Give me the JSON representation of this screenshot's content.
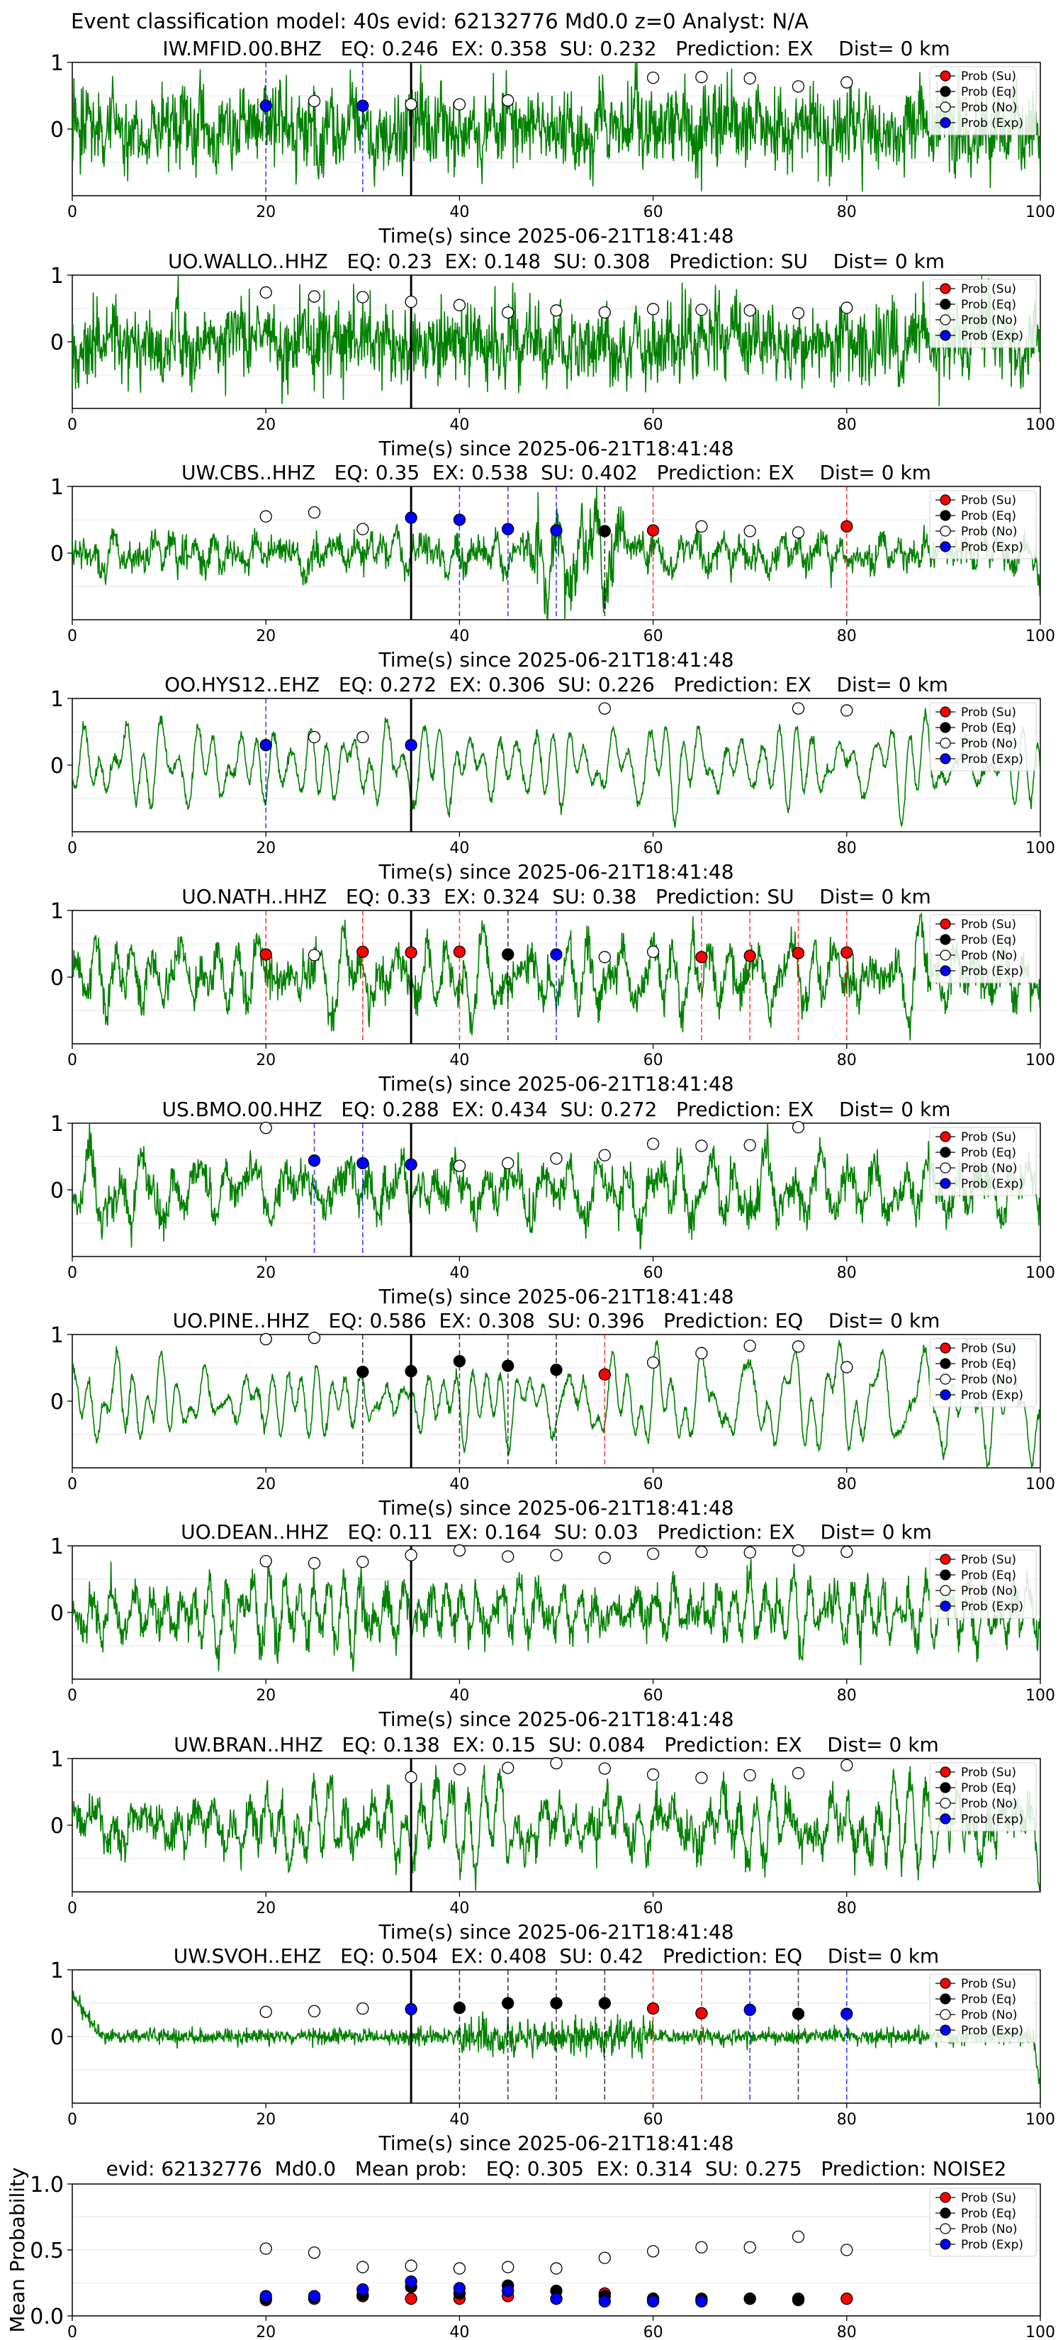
{
  "suptitle": "Event classification model: 40s evid: 62132776 Md0.0 z=0 Analyst: N/A",
  "colors": {
    "trace": "#008000",
    "su": "#ff0000",
    "eq": "#000000",
    "no": "#ffffff",
    "exp": "#0000ff",
    "origin_line": "#000000"
  },
  "legend": [
    "Prob (Su)",
    "Prob (Eq)",
    "Prob (No)",
    "Prob (Exp)"
  ],
  "chart_data": [
    {
      "type": "line",
      "panel_type": "waveform",
      "title": "IW.MFID.00.BHZ   EQ: 0.246  EX: 0.358  SU: 0.232   Prediction: EX    Dist= 0 km",
      "xlabel": "Time(s) since 2025-06-21T18:41:48",
      "xlim": [
        0,
        100
      ],
      "ylim": [
        -1,
        1
      ],
      "xticks": [
        0,
        20,
        40,
        60,
        80,
        100
      ],
      "yticks": [
        1,
        0
      ],
      "origin_time": 35,
      "trace_style": "noisy",
      "points": [
        {
          "t": 20,
          "p": 0.35,
          "c": "exp",
          "vline": true
        },
        {
          "t": 25,
          "p": 0.42,
          "c": "no"
        },
        {
          "t": 30,
          "p": 0.35,
          "c": "exp",
          "vline": true
        },
        {
          "t": 35,
          "p": 0.37,
          "c": "no"
        },
        {
          "t": 40,
          "p": 0.37,
          "c": "no"
        },
        {
          "t": 45,
          "p": 0.43,
          "c": "no"
        },
        {
          "t": 60,
          "p": 0.77,
          "c": "no"
        },
        {
          "t": 65,
          "p": 0.78,
          "c": "no"
        },
        {
          "t": 70,
          "p": 0.76,
          "c": "no"
        },
        {
          "t": 75,
          "p": 0.64,
          "c": "no"
        },
        {
          "t": 80,
          "p": 0.7,
          "c": "no"
        }
      ]
    },
    {
      "type": "line",
      "panel_type": "waveform",
      "title": "UO.WALLO..HHZ   EQ: 0.23  EX: 0.148  SU: 0.308   Prediction: SU    Dist= 0 km",
      "xlabel": "Time(s) since 2025-06-21T18:41:48",
      "xlim": [
        0,
        100
      ],
      "ylim": [
        -1,
        1
      ],
      "xticks": [
        0,
        20,
        40,
        60,
        80,
        100
      ],
      "yticks": [
        1,
        0
      ],
      "origin_time": 35,
      "trace_style": "noisy",
      "points": [
        {
          "t": 20,
          "p": 0.74,
          "c": "no"
        },
        {
          "t": 25,
          "p": 0.68,
          "c": "no"
        },
        {
          "t": 30,
          "p": 0.67,
          "c": "no"
        },
        {
          "t": 35,
          "p": 0.6,
          "c": "no"
        },
        {
          "t": 40,
          "p": 0.55,
          "c": "no"
        },
        {
          "t": 45,
          "p": 0.44,
          "c": "no"
        },
        {
          "t": 50,
          "p": 0.47,
          "c": "no"
        },
        {
          "t": 55,
          "p": 0.44,
          "c": "no"
        },
        {
          "t": 60,
          "p": 0.49,
          "c": "no"
        },
        {
          "t": 65,
          "p": 0.48,
          "c": "no"
        },
        {
          "t": 70,
          "p": 0.47,
          "c": "no"
        },
        {
          "t": 75,
          "p": 0.43,
          "c": "no"
        },
        {
          "t": 80,
          "p": 0.51,
          "c": "no"
        }
      ]
    },
    {
      "type": "line",
      "panel_type": "waveform",
      "title": "UW.CBS..HHZ   EQ: 0.35  EX: 0.538  SU: 0.402   Prediction: EX    Dist= 0 km",
      "xlabel": "Time(s) since 2025-06-21T18:41:48",
      "xlim": [
        0,
        100
      ],
      "ylim": [
        -1,
        1
      ],
      "xticks": [
        0,
        20,
        40,
        60,
        80,
        100
      ],
      "yticks": [
        1,
        0
      ],
      "origin_time": 35,
      "trace_style": "burst",
      "points": [
        {
          "t": 20,
          "p": 0.55,
          "c": "no"
        },
        {
          "t": 25,
          "p": 0.61,
          "c": "no"
        },
        {
          "t": 30,
          "p": 0.36,
          "c": "no"
        },
        {
          "t": 35,
          "p": 0.53,
          "c": "exp"
        },
        {
          "t": 40,
          "p": 0.5,
          "c": "exp",
          "vline": true
        },
        {
          "t": 45,
          "p": 0.36,
          "c": "exp",
          "vline": true
        },
        {
          "t": 50,
          "p": 0.34,
          "c": "exp",
          "vline": true
        },
        {
          "t": 55,
          "p": 0.33,
          "c": "eq",
          "vline": true
        },
        {
          "t": 60,
          "p": 0.34,
          "c": "su",
          "vline": true
        },
        {
          "t": 65,
          "p": 0.4,
          "c": "no"
        },
        {
          "t": 70,
          "p": 0.33,
          "c": "no"
        },
        {
          "t": 75,
          "p": 0.31,
          "c": "no"
        },
        {
          "t": 80,
          "p": 0.4,
          "c": "su",
          "vline": true
        }
      ]
    },
    {
      "type": "line",
      "panel_type": "waveform",
      "title": "OO.HYS12..EHZ   EQ: 0.272  EX: 0.306  SU: 0.226   Prediction: EX    Dist= 0 km",
      "xlabel": "Time(s) since 2025-06-21T18:41:48",
      "xlim": [
        0,
        100
      ],
      "ylim": [
        -1,
        1
      ],
      "xticks": [
        0,
        20,
        40,
        60,
        80,
        100
      ],
      "yticks": [
        1,
        0
      ],
      "origin_time": 35,
      "trace_style": "smooth",
      "points": [
        {
          "t": 20,
          "p": 0.3,
          "c": "exp",
          "vline": true
        },
        {
          "t": 25,
          "p": 0.42,
          "c": "no"
        },
        {
          "t": 30,
          "p": 0.42,
          "c": "no"
        },
        {
          "t": 35,
          "p": 0.3,
          "c": "exp"
        },
        {
          "t": 55,
          "p": 0.85,
          "c": "no"
        },
        {
          "t": 75,
          "p": 0.85,
          "c": "no"
        },
        {
          "t": 80,
          "p": 0.82,
          "c": "no"
        }
      ]
    },
    {
      "type": "line",
      "panel_type": "waveform",
      "title": "UO.NATH..HHZ   EQ: 0.33  EX: 0.324  SU: 0.38   Prediction: SU    Dist= 0 km",
      "xlabel": "Time(s) since 2025-06-21T18:41:48",
      "xlim": [
        0,
        100
      ],
      "ylim": [
        -1,
        1
      ],
      "xticks": [
        0,
        20,
        40,
        60,
        80,
        100
      ],
      "yticks": [
        1,
        0
      ],
      "origin_time": 35,
      "trace_style": "smooth-noisy",
      "points": [
        {
          "t": 20,
          "p": 0.34,
          "c": "su",
          "vline": true
        },
        {
          "t": 25,
          "p": 0.33,
          "c": "no"
        },
        {
          "t": 30,
          "p": 0.38,
          "c": "su",
          "vline": true
        },
        {
          "t": 35,
          "p": 0.37,
          "c": "su"
        },
        {
          "t": 40,
          "p": 0.38,
          "c": "su",
          "vline": true
        },
        {
          "t": 45,
          "p": 0.34,
          "c": "eq",
          "vline": true
        },
        {
          "t": 50,
          "p": 0.34,
          "c": "exp",
          "vline": true
        },
        {
          "t": 55,
          "p": 0.3,
          "c": "no"
        },
        {
          "t": 60,
          "p": 0.38,
          "c": "no"
        },
        {
          "t": 65,
          "p": 0.3,
          "c": "su",
          "vline": true
        },
        {
          "t": 70,
          "p": 0.32,
          "c": "su",
          "vline": true
        },
        {
          "t": 75,
          "p": 0.36,
          "c": "su",
          "vline": true
        },
        {
          "t": 80,
          "p": 0.37,
          "c": "su",
          "vline": true
        }
      ]
    },
    {
      "type": "line",
      "panel_type": "waveform",
      "title": "US.BMO.00.HHZ   EQ: 0.288  EX: 0.434  SU: 0.272   Prediction: EX    Dist= 0 km",
      "xlabel": "Time(s) since 2025-06-21T18:41:48",
      "xlim": [
        0,
        100
      ],
      "ylim": [
        -1,
        1
      ],
      "xticks": [
        0,
        20,
        40,
        60,
        80,
        100
      ],
      "yticks": [
        1,
        0
      ],
      "origin_time": 35,
      "trace_style": "smooth-noisy",
      "points": [
        {
          "t": 20,
          "p": 0.93,
          "c": "no"
        },
        {
          "t": 25,
          "p": 0.44,
          "c": "exp",
          "vline": true
        },
        {
          "t": 30,
          "p": 0.4,
          "c": "exp",
          "vline": true
        },
        {
          "t": 35,
          "p": 0.38,
          "c": "exp"
        },
        {
          "t": 40,
          "p": 0.36,
          "c": "no"
        },
        {
          "t": 45,
          "p": 0.4,
          "c": "no"
        },
        {
          "t": 50,
          "p": 0.47,
          "c": "no"
        },
        {
          "t": 55,
          "p": 0.52,
          "c": "no"
        },
        {
          "t": 60,
          "p": 0.69,
          "c": "no"
        },
        {
          "t": 65,
          "p": 0.66,
          "c": "no"
        },
        {
          "t": 70,
          "p": 0.67,
          "c": "no"
        },
        {
          "t": 75,
          "p": 0.94,
          "c": "no"
        }
      ]
    },
    {
      "type": "line",
      "panel_type": "waveform",
      "title": "UO.PINE..HHZ   EQ: 0.586  EX: 0.308  SU: 0.396   Prediction: EQ    Dist= 0 km",
      "xlabel": "Time(s) since 2025-06-21T18:41:48",
      "xlim": [
        0,
        100
      ],
      "ylim": [
        -1,
        1
      ],
      "xticks": [
        0,
        20,
        40,
        60,
        80,
        100
      ],
      "yticks": [
        1,
        0
      ],
      "origin_time": 35,
      "trace_style": "smooth",
      "points": [
        {
          "t": 20,
          "p": 0.93,
          "c": "no"
        },
        {
          "t": 25,
          "p": 0.95,
          "c": "no"
        },
        {
          "t": 30,
          "p": 0.44,
          "c": "eq",
          "vline": true
        },
        {
          "t": 35,
          "p": 0.45,
          "c": "eq"
        },
        {
          "t": 40,
          "p": 0.6,
          "c": "eq",
          "vline": true
        },
        {
          "t": 45,
          "p": 0.53,
          "c": "eq",
          "vline": true
        },
        {
          "t": 50,
          "p": 0.47,
          "c": "eq",
          "vline": true
        },
        {
          "t": 55,
          "p": 0.4,
          "c": "su",
          "vline": true
        },
        {
          "t": 60,
          "p": 0.58,
          "c": "no"
        },
        {
          "t": 65,
          "p": 0.72,
          "c": "no"
        },
        {
          "t": 70,
          "p": 0.83,
          "c": "no"
        },
        {
          "t": 75,
          "p": 0.82,
          "c": "no"
        },
        {
          "t": 80,
          "p": 0.51,
          "c": "no"
        }
      ]
    },
    {
      "type": "line",
      "panel_type": "waveform",
      "title": "UO.DEAN..HHZ   EQ: 0.11  EX: 0.164  SU: 0.03   Prediction: EX    Dist= 0 km",
      "xlabel": "Time(s) since 2025-06-21T18:41:48",
      "xlim": [
        0,
        100
      ],
      "ylim": [
        -1,
        1
      ],
      "xticks": [
        0,
        20,
        40,
        60,
        80,
        100
      ],
      "yticks": [
        1,
        0
      ],
      "origin_time": 35,
      "trace_style": "smooth-noisy",
      "points": [
        {
          "t": 20,
          "p": 0.77,
          "c": "no"
        },
        {
          "t": 25,
          "p": 0.74,
          "c": "no"
        },
        {
          "t": 30,
          "p": 0.76,
          "c": "no"
        },
        {
          "t": 35,
          "p": 0.86,
          "c": "no"
        },
        {
          "t": 40,
          "p": 0.93,
          "c": "no"
        },
        {
          "t": 45,
          "p": 0.84,
          "c": "no"
        },
        {
          "t": 50,
          "p": 0.86,
          "c": "no"
        },
        {
          "t": 55,
          "p": 0.82,
          "c": "no"
        },
        {
          "t": 60,
          "p": 0.88,
          "c": "no"
        },
        {
          "t": 65,
          "p": 0.91,
          "c": "no"
        },
        {
          "t": 70,
          "p": 0.9,
          "c": "no"
        },
        {
          "t": 75,
          "p": 0.93,
          "c": "no"
        },
        {
          "t": 80,
          "p": 0.91,
          "c": "no"
        }
      ]
    },
    {
      "type": "line",
      "panel_type": "waveform",
      "title": "UW.BRAN..HHZ   EQ: 0.138  EX: 0.15  SU: 0.084   Prediction: EX    Dist= 0 km",
      "xlabel": "Time(s) since 2025-06-21T18:41:48",
      "xlim": [
        0,
        100
      ],
      "ylim": [
        -1,
        1
      ],
      "xticks": [
        0,
        20,
        40,
        60,
        80
      ],
      "yticks": [
        1,
        0
      ],
      "origin_time": 35,
      "trace_style": "smooth-noisy",
      "points": [
        {
          "t": 35,
          "p": 0.72,
          "c": "no"
        },
        {
          "t": 40,
          "p": 0.84,
          "c": "no"
        },
        {
          "t": 45,
          "p": 0.86,
          "c": "no"
        },
        {
          "t": 50,
          "p": 0.93,
          "c": "no"
        },
        {
          "t": 55,
          "p": 0.85,
          "c": "no"
        },
        {
          "t": 60,
          "p": 0.76,
          "c": "no"
        },
        {
          "t": 65,
          "p": 0.71,
          "c": "no"
        },
        {
          "t": 70,
          "p": 0.75,
          "c": "no"
        },
        {
          "t": 75,
          "p": 0.78,
          "c": "no"
        },
        {
          "t": 80,
          "p": 0.9,
          "c": "no"
        }
      ]
    },
    {
      "type": "line",
      "panel_type": "waveform",
      "title": "UW.SVOH..EHZ   EQ: 0.504  EX: 0.408  SU: 0.42   Prediction: EQ    Dist= 0 km",
      "xlabel": "Time(s) since 2025-06-21T18:41:48",
      "xlim": [
        0,
        100
      ],
      "ylim": [
        -1,
        1
      ],
      "xticks": [
        0,
        20,
        40,
        60,
        80,
        100
      ],
      "yticks": [
        1,
        0
      ],
      "origin_time": 35,
      "trace_style": "quiet",
      "points": [
        {
          "t": 20,
          "p": 0.37,
          "c": "no"
        },
        {
          "t": 25,
          "p": 0.38,
          "c": "no"
        },
        {
          "t": 30,
          "p": 0.42,
          "c": "no"
        },
        {
          "t": 35,
          "p": 0.41,
          "c": "exp"
        },
        {
          "t": 40,
          "p": 0.43,
          "c": "eq",
          "vline": true
        },
        {
          "t": 45,
          "p": 0.5,
          "c": "eq",
          "vline": true
        },
        {
          "t": 50,
          "p": 0.5,
          "c": "eq",
          "vline": true
        },
        {
          "t": 55,
          "p": 0.5,
          "c": "eq",
          "vline": true
        },
        {
          "t": 60,
          "p": 0.42,
          "c": "su",
          "vline": true
        },
        {
          "t": 65,
          "p": 0.35,
          "c": "su",
          "vline": true
        },
        {
          "t": 70,
          "p": 0.4,
          "c": "exp",
          "vline": true
        },
        {
          "t": 75,
          "p": 0.34,
          "c": "eq",
          "vline": true
        },
        {
          "t": 80,
          "p": 0.34,
          "c": "exp",
          "vline": true
        }
      ]
    },
    {
      "type": "scatter",
      "panel_type": "mean",
      "title": "evid: 62132776  Md0.0   Mean prob:   EQ: 0.305  EX: 0.314  SU: 0.275   Prediction: NOISE2",
      "xlabel": "",
      "ylabel": "Mean Probability",
      "xlim": [
        0,
        100
      ],
      "ylim": [
        0,
        1
      ],
      "xticks": [
        0,
        20,
        40,
        60,
        80,
        100
      ],
      "yticks": [
        1.0,
        0.5,
        0.0
      ],
      "ytick_labels": [
        "1.0",
        "0.5",
        "0.0"
      ],
      "x": [
        20,
        25,
        30,
        35,
        40,
        45,
        50,
        55,
        60,
        65,
        70,
        75,
        80
      ],
      "series": [
        {
          "name": "Prob (Su)",
          "c": "su",
          "values": [
            0.12,
            0.13,
            0.15,
            0.13,
            0.13,
            0.15,
            0.13,
            0.17,
            0.13,
            0.13,
            0.13,
            0.13,
            0.13
          ]
        },
        {
          "name": "Prob (Eq)",
          "c": "eq",
          "values": [
            0.13,
            0.14,
            0.16,
            0.22,
            0.17,
            0.23,
            0.19,
            0.15,
            0.13,
            0.12,
            0.13,
            0.12,
            null
          ]
        },
        {
          "name": "Prob (No)",
          "c": "no",
          "values": [
            0.51,
            0.48,
            0.37,
            0.38,
            0.36,
            0.37,
            0.36,
            0.44,
            0.49,
            0.52,
            0.52,
            0.6,
            0.5
          ]
        },
        {
          "name": "Prob (Exp)",
          "c": "exp",
          "values": [
            0.15,
            0.15,
            0.2,
            0.26,
            0.21,
            0.19,
            0.13,
            0.11,
            0.11,
            0.11,
            null,
            null,
            null
          ]
        }
      ]
    }
  ]
}
